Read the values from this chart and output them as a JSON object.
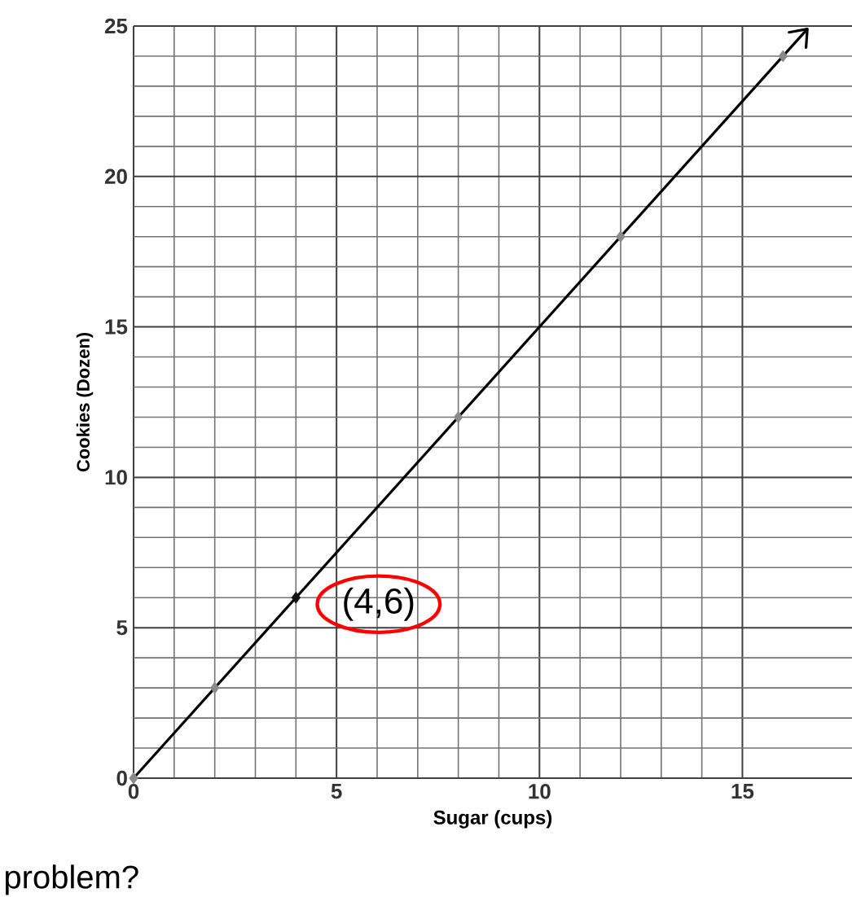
{
  "chart_data": {
    "type": "scatter",
    "xlabel": "Sugar (cups)",
    "ylabel": "Cookies (Dozen)",
    "xlim": [
      0,
      17.7
    ],
    "ylim": [
      0,
      25
    ],
    "xticks": [
      0,
      5,
      10,
      15
    ],
    "yticks": [
      0,
      5,
      10,
      15,
      20,
      25
    ],
    "grid": true,
    "marker": "diamond",
    "series": [
      {
        "x": [
          0,
          2,
          4,
          8,
          12,
          16
        ],
        "values": [
          0,
          3,
          6,
          12,
          18,
          24
        ],
        "colors": [
          "#8a8a8a",
          "#8a8a8a",
          "#111111",
          "#8a8a8a",
          "#8a8a8a",
          "#8a8a8a"
        ]
      },
      {
        "type": "line",
        "x": [
          0,
          16.6
        ],
        "values": [
          0,
          24.9
        ],
        "color": "#000000",
        "marker": "none",
        "line_style": "solid"
      }
    ],
    "annotations": [
      {
        "text": "(4,6)",
        "x": 4,
        "y": 6
      },
      "problem?"
    ]
  }
}
